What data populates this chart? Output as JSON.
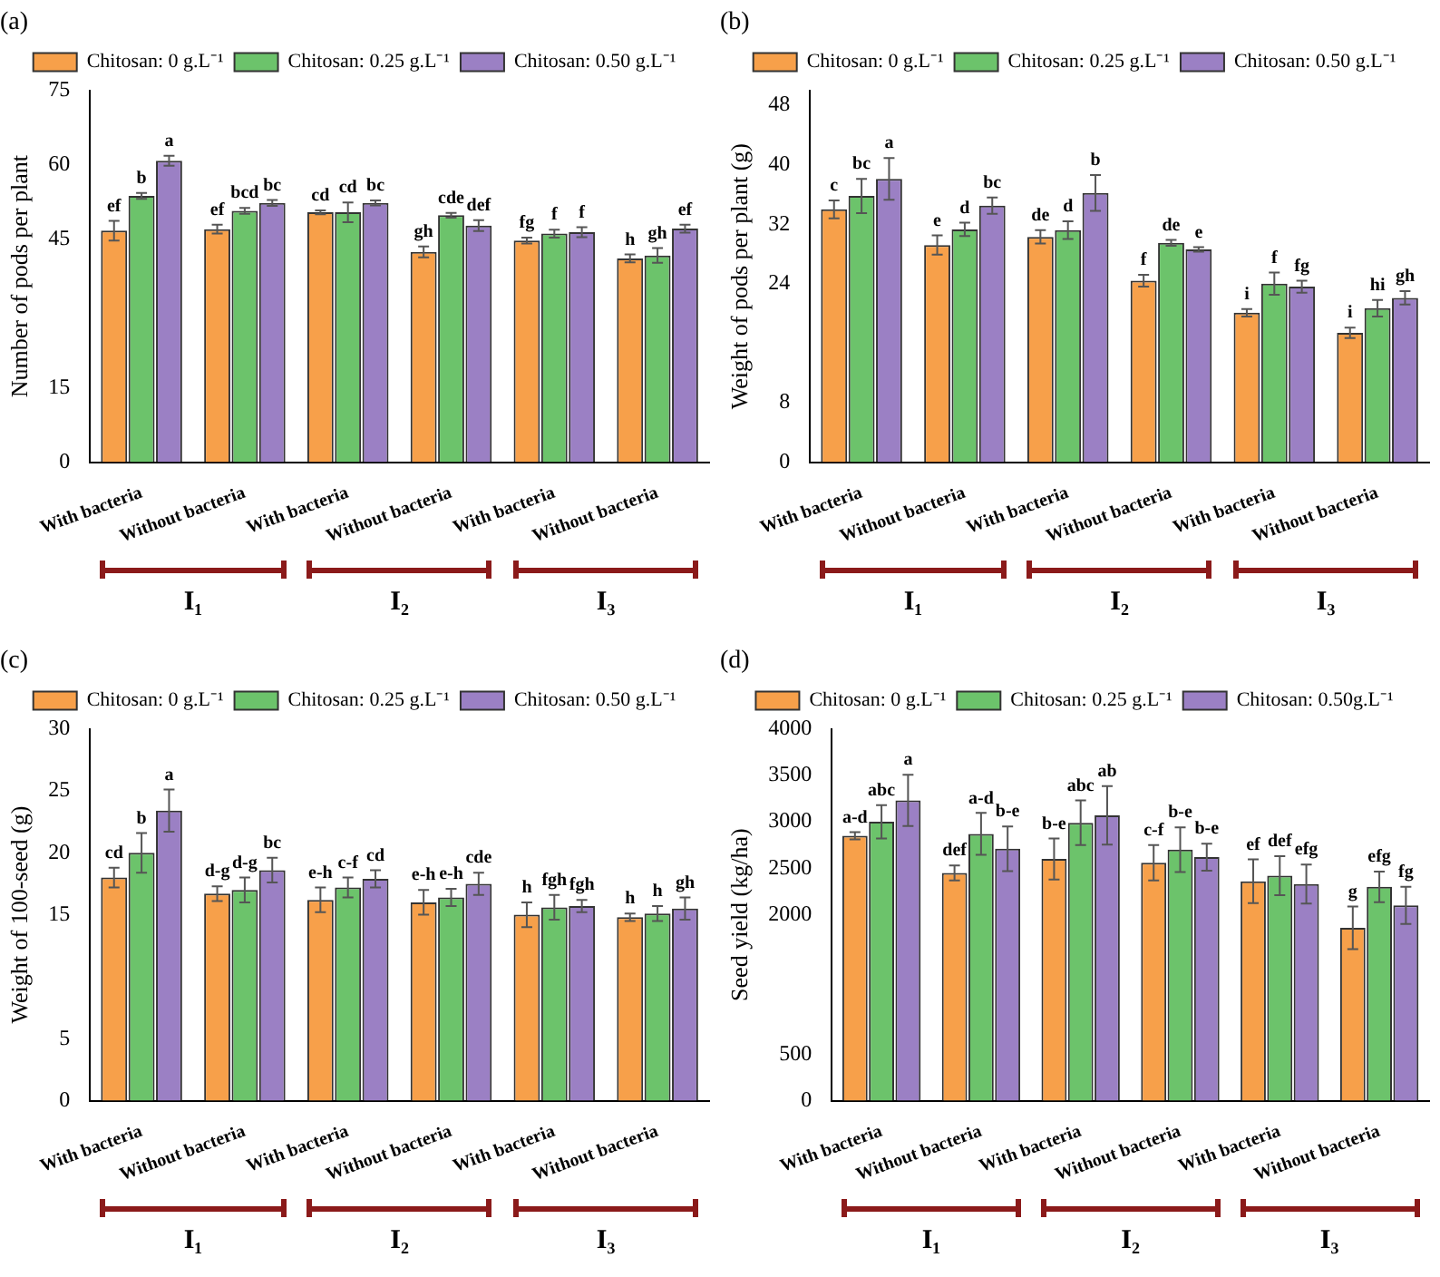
{
  "chart_data": [
    {
      "type": "bar",
      "title": "(a)",
      "ylabel": "Number of pods per plant",
      "categories": [
        "With bacteria",
        "Without bacteria",
        "With bacteria",
        "Without bacteria",
        "With bacteria",
        "Without bacteria"
      ],
      "ylim": [
        0,
        75
      ],
      "yticks": [
        0,
        15,
        45,
        60,
        75
      ],
      "legend": "top",
      "annotations": [
        "I₁",
        "I₂",
        "I₃"
      ],
      "series": [
        {
          "name": "Chitosan: 0 g.L⁻¹",
          "color": "#f7a04a",
          "values": [
            46.7,
            47.0,
            50.4,
            42.4,
            44.7,
            41.1
          ],
          "errors": [
            2.0,
            0.9,
            0.4,
            1.1,
            0.6,
            0.8
          ],
          "value_labels": [
            "ef",
            "ef",
            "cd",
            "gh",
            "fg",
            "h"
          ]
        },
        {
          "name": "Chitosan: 0.25 g.L⁻¹",
          "color": "#6cc36b",
          "values": [
            53.7,
            50.7,
            50.4,
            49.8,
            46.1,
            41.7
          ],
          "errors": [
            0.6,
            0.6,
            2.0,
            0.5,
            0.8,
            1.5
          ],
          "value_labels": [
            "b",
            "bcd",
            "cd",
            "cde",
            "f",
            "gh"
          ]
        },
        {
          "name": "Chitosan: 0.50 g.L⁻¹",
          "color": "#9b80c4",
          "values": [
            60.8,
            52.3,
            52.3,
            47.7,
            46.4,
            47.1
          ],
          "errors": [
            1.0,
            0.6,
            0.5,
            1.1,
            1.0,
            0.8
          ],
          "value_labels": [
            "a",
            "bc",
            "bc",
            "def",
            "f",
            "ef"
          ]
        }
      ]
    },
    {
      "type": "bar",
      "title": "(b)",
      "ylabel": "Weight of pods per plant (g)",
      "categories": [
        "With bacteria",
        "Without bacteria",
        "With bacteria",
        "Without bacteria",
        "With bacteria",
        "Without bacteria"
      ],
      "ylim": [
        0,
        50
      ],
      "yticks": [
        0,
        8,
        24,
        32,
        40,
        48
      ],
      "legend": "top",
      "annotations": [
        "I₁",
        "I₂",
        "I₃"
      ],
      "series": [
        {
          "name": "Chitosan: 0 g.L⁻¹",
          "color": "#f7a04a",
          "values": [
            34.0,
            29.2,
            30.3,
            24.4,
            20.1,
            17.4
          ],
          "errors": [
            1.2,
            1.3,
            0.9,
            0.8,
            0.5,
            0.7
          ],
          "value_labels": [
            "c",
            "e",
            "de",
            "f",
            "i",
            "i"
          ]
        },
        {
          "name": "Chitosan: 0.25 g.L⁻¹",
          "color": "#6cc36b",
          "values": [
            35.8,
            31.3,
            31.2,
            29.5,
            24.0,
            20.7
          ],
          "errors": [
            2.3,
            0.9,
            1.2,
            0.4,
            1.5,
            1.1
          ],
          "value_labels": [
            "bc",
            "d",
            "d",
            "de",
            "f",
            "hi"
          ]
        },
        {
          "name": "Chitosan: 0.50 g.L⁻¹",
          "color": "#9b80c4",
          "values": [
            38.1,
            34.5,
            36.2,
            28.6,
            23.6,
            22.1
          ],
          "errors": [
            2.8,
            1.1,
            2.4,
            0.3,
            0.8,
            0.9
          ],
          "value_labels": [
            "a",
            "bc",
            "b",
            "e",
            "fg",
            "gh"
          ]
        }
      ]
    },
    {
      "type": "bar",
      "title": "(c)",
      "ylabel": "Weight of 100-seed (g)",
      "categories": [
        "With bacteria",
        "Without bacteria",
        "With bacteria",
        "Without bacteria",
        "With bacteria",
        "Without bacteria"
      ],
      "ylim": [
        0,
        30
      ],
      "yticks": [
        0,
        5,
        15,
        20,
        25,
        30
      ],
      "legend": "top",
      "annotations": [
        "I₁",
        "I₂",
        "I₃"
      ],
      "series": [
        {
          "name": "Chitosan: 0 g.L⁻¹",
          "color": "#f7a04a",
          "values": [
            18.0,
            16.7,
            16.2,
            16.0,
            15.0,
            14.8
          ],
          "errors": [
            0.8,
            0.6,
            1.0,
            1.0,
            1.0,
            0.3
          ],
          "value_labels": [
            "cd",
            "d-g",
            "e-h",
            "e-h",
            "h",
            "h"
          ]
        },
        {
          "name": "Chitosan: 0.25 g.L⁻¹",
          "color": "#6cc36b",
          "values": [
            20.0,
            17.0,
            17.2,
            16.4,
            15.6,
            15.1
          ],
          "errors": [
            1.6,
            1.0,
            0.8,
            0.7,
            1.0,
            0.6
          ],
          "value_labels": [
            "b",
            "d-g",
            "c-f",
            "e-h",
            "fgh",
            "h"
          ]
        },
        {
          "name": "Chitosan: 0.50 g.L⁻¹",
          "color": "#9b80c4",
          "values": [
            23.4,
            18.6,
            17.9,
            17.5,
            15.7,
            15.5
          ],
          "errors": [
            1.7,
            1.0,
            0.7,
            0.9,
            0.5,
            0.9
          ],
          "value_labels": [
            "a",
            "bc",
            "cd",
            "cde",
            "fgh",
            "gh"
          ]
        }
      ]
    },
    {
      "type": "bar",
      "title": "(d)",
      "ylabel": "Seed yield (kg/ha)",
      "categories": [
        "With bacteria",
        "Without bacteria",
        "With bacteria",
        "Without bacteria",
        "With bacteria",
        "Without bacteria"
      ],
      "ylim": [
        0,
        4000
      ],
      "yticks": [
        0,
        500,
        2000,
        2500,
        3000,
        3500,
        4000
      ],
      "legend": "top",
      "annotations": [
        "I₁",
        "I₂",
        "I₃"
      ],
      "series": [
        {
          "name": "Chitosan: 0 g.L⁻¹",
          "color": "#f7a04a",
          "values": [
            2850,
            2450,
            2600,
            2560,
            2360,
            1860
          ],
          "errors": [
            40,
            80,
            220,
            190,
            235,
            230
          ],
          "value_labels": [
            "a-d",
            "def",
            "b-e",
            "c-f",
            "ef",
            "g"
          ]
        },
        {
          "name": "Chitosan: 0.25 g.L⁻¹",
          "color": "#6cc36b",
          "values": [
            3000,
            2870,
            2990,
            2700,
            2420,
            2300
          ],
          "errors": [
            180,
            225,
            240,
            240,
            210,
            165
          ],
          "value_labels": [
            "abc",
            "a-d",
            "abc",
            "b-e",
            "def",
            "efg"
          ]
        },
        {
          "name": "Chitosan: 0.50g.L⁻¹",
          "color": "#9b80c4",
          "values": [
            3230,
            2710,
            3070,
            2620,
            2330,
            2100
          ],
          "errors": [
            275,
            240,
            315,
            145,
            210,
            200
          ],
          "value_labels": [
            "a",
            "b-e",
            "ab",
            "b-e",
            "efg",
            "fg"
          ]
        }
      ]
    }
  ]
}
